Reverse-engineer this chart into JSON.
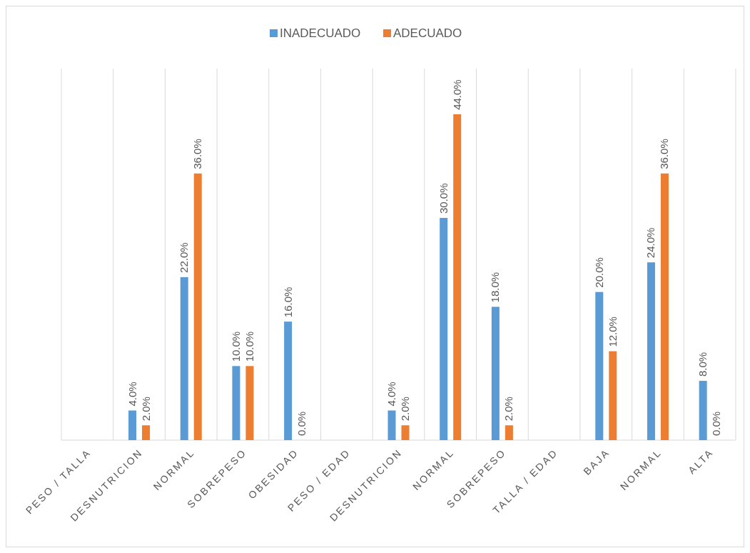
{
  "chart_data": {
    "type": "bar",
    "categories": [
      "PESO / TALLA",
      "DESNUTRICION",
      "NORMAL",
      "SOBREPESO",
      "OBESIDAD",
      "PESO / EDAD",
      "DESNUTRICION",
      "NORMAL",
      "SOBREPESO",
      "TALLA / EDAD",
      "BAJA",
      "NORMAL",
      "ALTA"
    ],
    "series": [
      {
        "name": "INADECUADO",
        "color": "#5b9bd5",
        "values": [
          null,
          4,
          22,
          10,
          16,
          null,
          4,
          30,
          18,
          null,
          20,
          24,
          8
        ],
        "value_labels": [
          null,
          "4.0%",
          "22.0%",
          "10.0%",
          "16.0%",
          null,
          "4.0%",
          "30.0%",
          "18.0%",
          null,
          "20.0%",
          "24.0%",
          "8.0%"
        ]
      },
      {
        "name": "ADECUADO",
        "color": "#ed7d31",
        "values": [
          null,
          2,
          36,
          10,
          0,
          null,
          2,
          44,
          2,
          null,
          12,
          36,
          0
        ],
        "value_labels": [
          null,
          "2.0%",
          "36.0%",
          "10.0%",
          "0.0%",
          null,
          "2.0%",
          "44.0%",
          "2.0%",
          null,
          "12.0%",
          "36.0%",
          "0.0%"
        ]
      }
    ],
    "grid": "x",
    "legend": "top"
  }
}
